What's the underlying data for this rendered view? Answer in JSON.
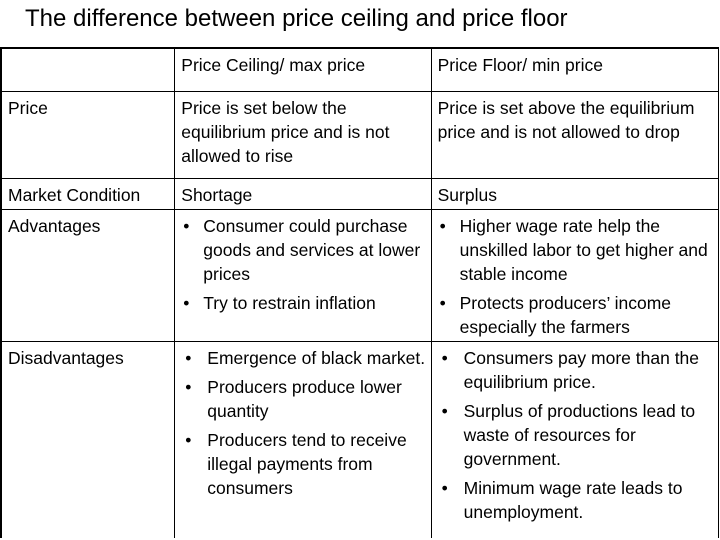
{
  "title": "The difference between price ceiling and price floor",
  "table": {
    "headers": [
      "",
      "Price Ceiling/ max price",
      "Price Floor/ min price"
    ],
    "rows": {
      "price": {
        "label": "Price",
        "ceiling": "Price is set below the equilibrium price and is not allowed to rise",
        "floor": "Price is set above the equilibrium price and is not allowed to drop"
      },
      "market": {
        "label": "Market Condition",
        "ceiling": "Shortage",
        "floor": "Surplus"
      },
      "advantages": {
        "label": "Advantages",
        "ceiling": [
          "Consumer could purchase goods and services at lower prices",
          "Try to restrain inflation"
        ],
        "floor": [
          "Higher wage rate help the unskilled labor to get higher and stable income",
          "Protects producers’ income especially the farmers"
        ]
      },
      "disadvantages": {
        "label": "Disadvantages",
        "ceiling": [
          "Emergence of black market.",
          "Producers produce lower quantity",
          "Producers tend to receive illegal payments from consumers"
        ],
        "floor": [
          "Consumers pay more than the equilibrium price.",
          "Surplus of productions lead to waste of resources for government.",
          "Minimum wage rate leads to unemployment."
        ]
      }
    }
  }
}
